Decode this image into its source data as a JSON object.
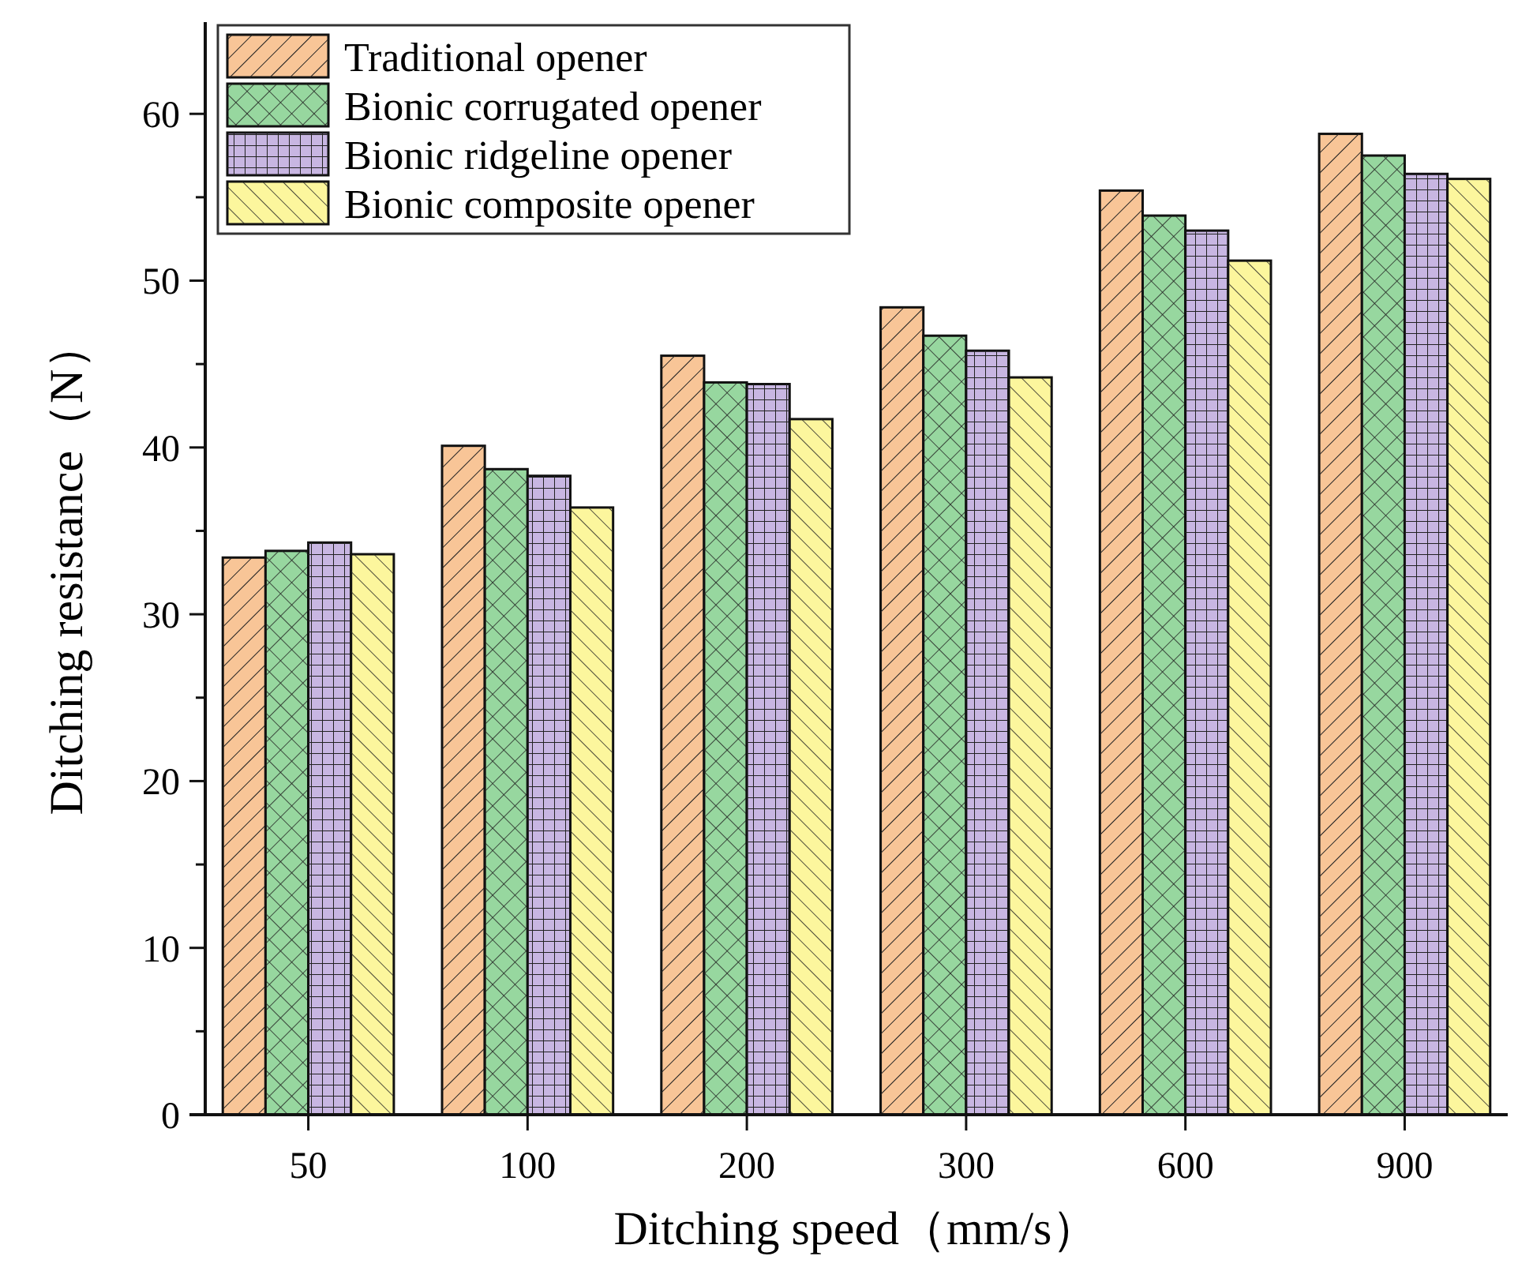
{
  "chart_data": {
    "type": "bar",
    "xlabel": "Ditching speed（mm/s）",
    "ylabel": "Ditching resistance（N）",
    "categories": [
      "50",
      "100",
      "200",
      "300",
      "600",
      "900"
    ],
    "series": [
      {
        "name": "Traditional opener",
        "color": "#f8c597",
        "values": [
          33.4,
          40.1,
          45.5,
          48.4,
          55.4,
          58.8
        ]
      },
      {
        "name": "Bionic corrugated opener",
        "color": "#97d79f",
        "values": [
          33.8,
          38.7,
          43.9,
          46.7,
          53.9,
          57.5
        ]
      },
      {
        "name": "Bionic ridgeline opener",
        "color": "#c8b6e2",
        "values": [
          34.3,
          38.3,
          43.8,
          45.8,
          53.0,
          56.4
        ]
      },
      {
        "name": "Bionic composite opener",
        "color": "#fcf69d",
        "values": [
          33.6,
          36.4,
          41.7,
          44.2,
          51.2,
          56.1
        ]
      }
    ],
    "ylim": [
      0,
      65.5
    ],
    "yticks": [
      0,
      10,
      20,
      30,
      40,
      50,
      60
    ],
    "grid": false,
    "legend": "top left"
  }
}
